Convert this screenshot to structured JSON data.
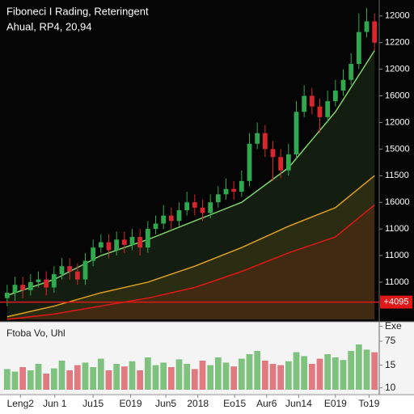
{
  "chart_data": [
    {
      "type": "candlestick",
      "title": "Fiboneci I Rading, Reteringent",
      "subtitle": "Ahual, RP4, 20,94",
      "up_color": "#2fa84f",
      "down_color": "#d7262e",
      "ohlc": [
        [
          10940,
          10990,
          10910,
          10960
        ],
        [
          10960,
          11020,
          10930,
          10990
        ],
        [
          10990,
          11020,
          10940,
          10970
        ],
        [
          10970,
          11030,
          10950,
          11000
        ],
        [
          11000,
          11040,
          10980,
          11010
        ],
        [
          11010,
          11040,
          10950,
          10980
        ],
        [
          10980,
          11060,
          10960,
          11030
        ],
        [
          11030,
          11090,
          11010,
          11060
        ],
        [
          11060,
          11090,
          11010,
          11040
        ],
        [
          11040,
          11070,
          10990,
          11010
        ],
        [
          11010,
          11110,
          10990,
          11080
        ],
        [
          11080,
          11160,
          11060,
          11130
        ],
        [
          11130,
          11180,
          11110,
          11150
        ],
        [
          11150,
          11180,
          11090,
          11120
        ],
        [
          11120,
          11190,
          11100,
          11160
        ],
        [
          11160,
          11190,
          11110,
          11140
        ],
        [
          11140,
          11200,
          11120,
          11170
        ],
        [
          11170,
          11200,
          11100,
          11130
        ],
        [
          11130,
          11230,
          11110,
          11200
        ],
        [
          11200,
          11250,
          11180,
          11220
        ],
        [
          11220,
          11290,
          11200,
          11250
        ],
        [
          11250,
          11280,
          11200,
          11230
        ],
        [
          11230,
          11300,
          11210,
          11270
        ],
        [
          11270,
          11340,
          11250,
          11300
        ],
        [
          11300,
          11330,
          11250,
          11280
        ],
        [
          11280,
          11310,
          11230,
          11260
        ],
        [
          11260,
          11330,
          11240,
          11300
        ],
        [
          11300,
          11360,
          11280,
          11330
        ],
        [
          11330,
          11390,
          11310,
          11350
        ],
        [
          11350,
          11380,
          11310,
          11340
        ],
        [
          11340,
          11420,
          11320,
          11380
        ],
        [
          11380,
          11560,
          11360,
          11520
        ],
        [
          11520,
          11600,
          11500,
          11560
        ],
        [
          11560,
          11590,
          11470,
          11500
        ],
        [
          11500,
          11530,
          11380,
          11470
        ],
        [
          11470,
          11500,
          11390,
          11420
        ],
        [
          11420,
          11520,
          11400,
          11480
        ],
        [
          11480,
          11680,
          11460,
          11640
        ],
        [
          11640,
          11740,
          11620,
          11700
        ],
        [
          11700,
          11730,
          11630,
          11660
        ],
        [
          11660,
          11690,
          11560,
          11620
        ],
        [
          11620,
          11720,
          11600,
          11680
        ],
        [
          11680,
          11760,
          11660,
          11720
        ],
        [
          11720,
          11800,
          11700,
          11760
        ],
        [
          11760,
          11860,
          11740,
          11820
        ],
        [
          11820,
          12010,
          11800,
          11940
        ],
        [
          11940,
          12030,
          11920,
          11980
        ],
        [
          11980,
          12010,
          11870,
          11900
        ]
      ],
      "xlim": [
        -0.5,
        47.5
      ],
      "xticks": [
        {
          "value": 1.7,
          "label": "Leng2"
        },
        {
          "value": 6.1,
          "label": "Jun 1"
        },
        {
          "value": 11,
          "label": "Ju15"
        },
        {
          "value": 15.8,
          "label": "E019"
        },
        {
          "value": 20.3,
          "label": "Jun5"
        },
        {
          "value": 24.4,
          "label": "2018"
        },
        {
          "value": 29.1,
          "label": "Eo15"
        },
        {
          "value": 33.2,
          "label": "Aur6"
        },
        {
          "value": 37.3,
          "label": "Jun14"
        },
        {
          "value": 42,
          "label": "E019"
        },
        {
          "value": 46.3,
          "label": "To19"
        }
      ],
      "ylim": [
        10860,
        12045
      ],
      "yticks": [
        12000,
        {
          "value": 11900,
          "label": "12200"
        },
        {
          "value": 11800,
          "label": "12000"
        },
        {
          "value": 11700,
          "label": "16000"
        },
        {
          "value": 11600,
          "label": "12000"
        },
        {
          "value": 11500,
          "label": "15000"
        },
        {
          "value": 11400,
          "label": "11500"
        },
        {
          "value": 11300,
          "label": "16000"
        },
        {
          "value": 11200,
          "label": "11000"
        },
        {
          "value": 11100,
          "label": "11000"
        },
        {
          "value": 11000,
          "label": "11000"
        }
      ],
      "overlays": [
        {
          "color": "#7fd36a",
          "x": [
            0,
            6,
            12,
            18,
            24,
            30,
            36,
            42,
            47
          ],
          "values": [
            10950,
            11010,
            11100,
            11160,
            11230,
            11300,
            11430,
            11640,
            11870
          ]
        },
        {
          "color": "#e0a020",
          "x": [
            0,
            6,
            12,
            18,
            24,
            30,
            36,
            42,
            47
          ],
          "values": [
            10870,
            10910,
            10960,
            11000,
            11060,
            11130,
            11210,
            11280,
            11400
          ]
        },
        {
          "color": "#e01818",
          "x": [
            0,
            6,
            12,
            18,
            24,
            30,
            36,
            42,
            47
          ],
          "values": [
            10860,
            10880,
            10910,
            10940,
            10980,
            11040,
            11110,
            11170,
            11290
          ]
        }
      ],
      "price_line": {
        "value": 10925,
        "label": "+4095",
        "color": "#e01818"
      }
    },
    {
      "type": "bar",
      "title": "Ftoba Vo, Uhl",
      "values": [
        32,
        28,
        35,
        30,
        40,
        25,
        33,
        45,
        30,
        38,
        42,
        35,
        48,
        30,
        40,
        36,
        44,
        30,
        50,
        38,
        42,
        35,
        47,
        40,
        32,
        45,
        38,
        50,
        42,
        36,
        48,
        55,
        60,
        45,
        40,
        38,
        44,
        58,
        52,
        40,
        48,
        55,
        50,
        46,
        60,
        70,
        62,
        58
      ],
      "xlim": [
        -0.5,
        47.5
      ],
      "ylim": [
        0,
        100
      ],
      "yticks": [
        {
          "value": 98,
          "label": "Exe"
        },
        75,
        {
          "value": 38,
          "label": "15"
        },
        {
          "value": 3,
          "label": "10"
        }
      ]
    }
  ]
}
